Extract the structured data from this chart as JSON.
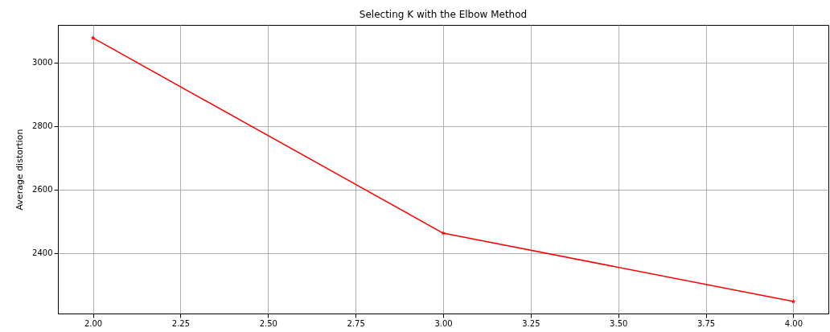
{
  "chart_data": {
    "type": "line",
    "title": "Selecting K with the Elbow Method",
    "ylabel": "Average distortion",
    "x": [
      2,
      3,
      4
    ],
    "series": [
      {
        "color": "#ff0000",
        "values": [
          3078,
          2463,
          2248
        ]
      }
    ],
    "xlim": [
      1.9,
      4.1
    ],
    "xticks": [
      {
        "value": 2,
        "label": "2.00"
      },
      {
        "value": 2.25,
        "label": "2.25"
      },
      {
        "value": 2.5,
        "label": "2.50"
      },
      {
        "value": 2.75,
        "label": "2.75"
      },
      {
        "value": 3,
        "label": "3.00"
      },
      {
        "value": 3.25,
        "label": "3.25"
      },
      {
        "value": 3.5,
        "label": "3.50"
      },
      {
        "value": 3.75,
        "label": "3.75"
      },
      {
        "value": 4,
        "label": "4.00"
      }
    ],
    "ylim": [
      2210,
      3119
    ],
    "yticks": [
      2400,
      2600,
      2800,
      3000
    ],
    "grid": true,
    "marker": "star",
    "line_style": "solid"
  }
}
